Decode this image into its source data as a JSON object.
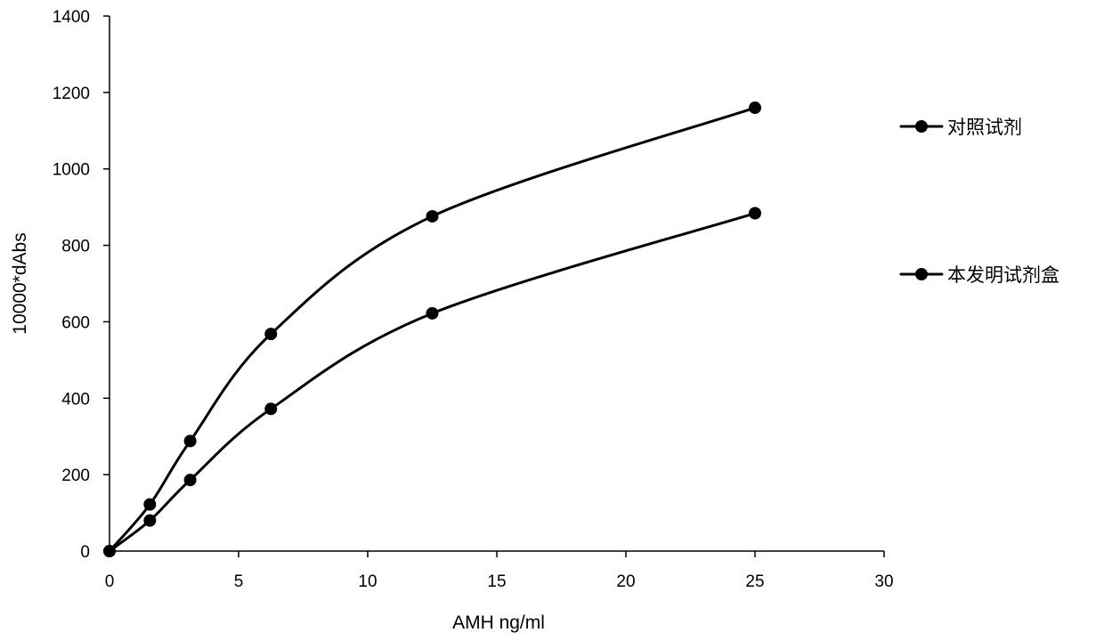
{
  "chart_data": {
    "type": "line",
    "title": "",
    "xlabel": "AMH ng/ml",
    "ylabel": "10000*dAbs",
    "xlim": [
      0,
      30
    ],
    "ylim": [
      0,
      1400
    ],
    "x_ticks": [
      "0",
      "5",
      "10",
      "15",
      "20",
      "25",
      "30"
    ],
    "y_ticks": [
      "0",
      "200",
      "400",
      "600",
      "800",
      "1000",
      "1200",
      "1400"
    ],
    "grid": false,
    "smooth": true,
    "legend_position": "right",
    "x": [
      0,
      1.5625,
      3.125,
      6.25,
      12.5,
      25
    ],
    "series": [
      {
        "name": "对照试剂",
        "values": [
          0,
          122,
          288,
          568,
          876,
          1160
        ],
        "color": "#000000"
      },
      {
        "name": "本发明试剂盒",
        "values": [
          0,
          80,
          186,
          372,
          622,
          884
        ],
        "color": "#000000"
      }
    ]
  }
}
